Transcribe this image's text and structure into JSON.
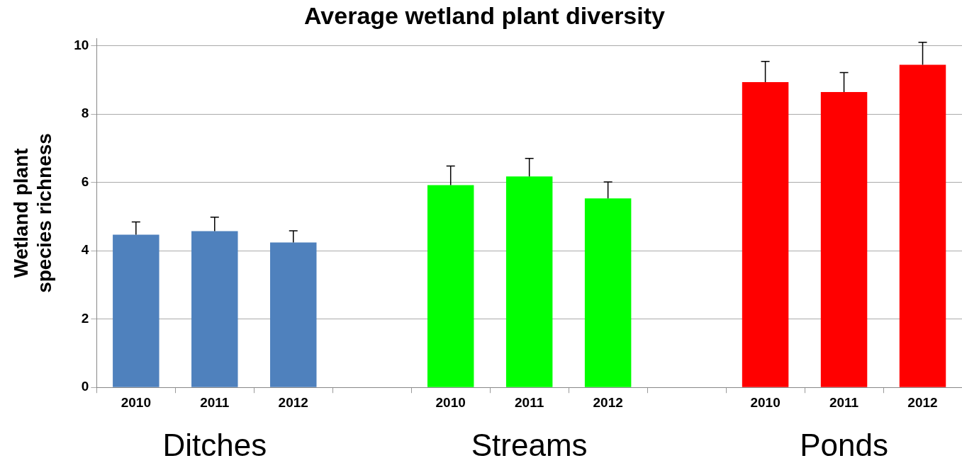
{
  "chart_data": {
    "type": "bar",
    "title": "Average wetland plant diversity",
    "ylabel": "Wetland plant species richness",
    "categories": [
      "2010",
      "2011",
      "2012",
      null,
      "2010",
      "2011",
      "2012",
      null,
      "2010",
      "2011",
      "2012"
    ],
    "values": [
      4.47,
      4.57,
      4.24,
      null,
      5.92,
      6.17,
      5.53,
      null,
      8.93,
      8.64,
      9.44
    ],
    "colors": [
      "#4f81bd",
      "#4f81bd",
      "#4f81bd",
      "#4f81bd",
      "#00ff00",
      "#00ff00",
      "#00ff00",
      "#00ff00",
      "#ff0000",
      "#ff0000",
      "#ff0000"
    ],
    "errors": [
      [
        4.47,
        4.84
      ],
      [
        4.57,
        4.98
      ],
      [
        4.24,
        4.58
      ],
      null,
      [
        5.92,
        6.48
      ],
      [
        6.17,
        6.7
      ],
      [
        5.53,
        6.01
      ],
      null,
      [
        8.93,
        9.54
      ],
      [
        8.64,
        9.21
      ],
      [
        9.44,
        10.1
      ]
    ],
    "ylim": [
      0,
      10.2
    ],
    "yticks": [
      0,
      2,
      4,
      6,
      8,
      10
    ],
    "grid": "y",
    "legend": false,
    "annotations": [
      "Ditches",
      "Streams",
      "Ponds"
    ]
  }
}
